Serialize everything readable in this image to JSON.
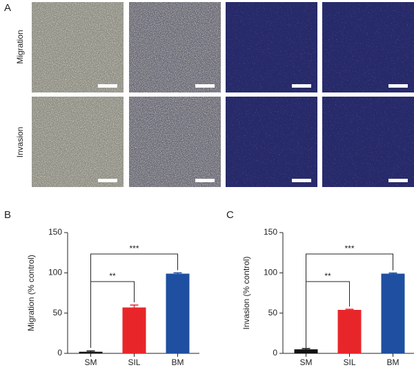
{
  "panel_labels": [
    "A",
    "B",
    "C"
  ],
  "row_labels": [
    "Migration",
    "Invasion"
  ],
  "chart_data": [
    {
      "type": "bar",
      "ylabel": "Migration (% control)",
      "categories": [
        "SM",
        "SIL",
        "BM"
      ],
      "values": [
        2,
        57,
        99
      ],
      "errors": [
        1,
        3,
        1
      ],
      "colors": [
        "#111111",
        "#e8262a",
        "#1f4fa0"
      ],
      "ylim": [
        0,
        150
      ],
      "yticks": [
        0,
        50,
        100,
        150
      ],
      "annotations": [
        "**",
        "***"
      ]
    },
    {
      "type": "bar",
      "ylabel": "Invasion (% control)",
      "categories": [
        "SM",
        "SIL",
        "BM"
      ],
      "values": [
        5,
        54,
        99
      ],
      "errors": [
        1,
        0.8,
        0.8
      ],
      "colors": [
        "#111111",
        "#e8262a",
        "#1f4fa0"
      ],
      "ylim": [
        0,
        150
      ],
      "yticks": [
        0,
        50,
        100,
        150
      ],
      "annotations": [
        "**",
        "***"
      ]
    }
  ]
}
